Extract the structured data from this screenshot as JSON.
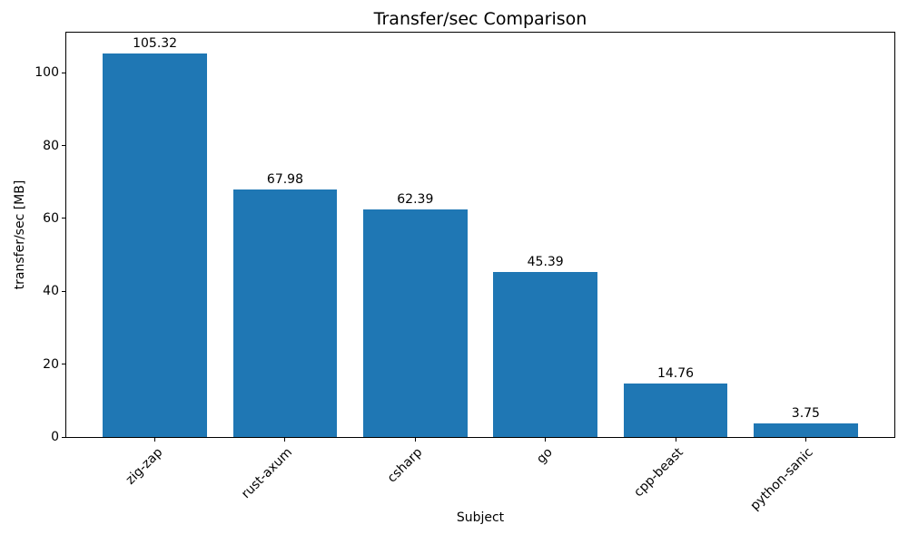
{
  "chart_data": {
    "type": "bar",
    "title": "Transfer/sec Comparison",
    "xlabel": "Subject",
    "ylabel": "transfer/sec [MB]",
    "categories": [
      "zig-zap",
      "rust-axum",
      "csharp",
      "go",
      "cpp-beast",
      "python-sanic"
    ],
    "values": [
      105.32,
      67.98,
      62.39,
      45.39,
      14.76,
      3.75
    ],
    "bar_labels": [
      "105.32",
      "67.98",
      "62.39",
      "45.39",
      "14.76",
      "3.75"
    ],
    "yticks": [
      0,
      20,
      40,
      60,
      80,
      100
    ],
    "ylim": [
      0,
      111
    ],
    "bar_color": "#1f77b4",
    "background_color": "#ffffff",
    "grid": false,
    "legend": "none"
  }
}
